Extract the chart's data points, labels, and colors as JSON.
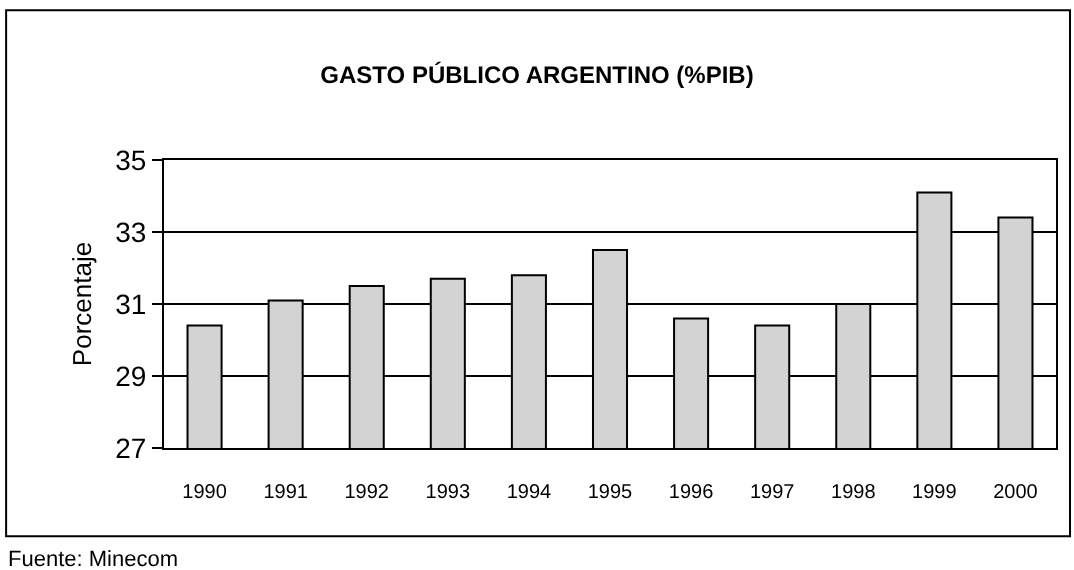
{
  "chart_data": {
    "type": "bar",
    "title": "GASTO PÚBLICO ARGENTINO (%PIB)",
    "ylabel": "Porcentaje",
    "categories": [
      "1990",
      "1991",
      "1992",
      "1993",
      "1994",
      "1995",
      "1996",
      "1997",
      "1998",
      "1999",
      "2000"
    ],
    "values": [
      30.4,
      31.1,
      31.5,
      31.7,
      31.8,
      32.5,
      30.6,
      30.4,
      31.0,
      34.1,
      33.4
    ],
    "color": "#d3d3d3",
    "ylim": [
      27,
      35
    ],
    "yticks": [
      27,
      29,
      31,
      33,
      35
    ],
    "grid": "y",
    "annotations": [
      "Fuente: Minecom"
    ]
  }
}
